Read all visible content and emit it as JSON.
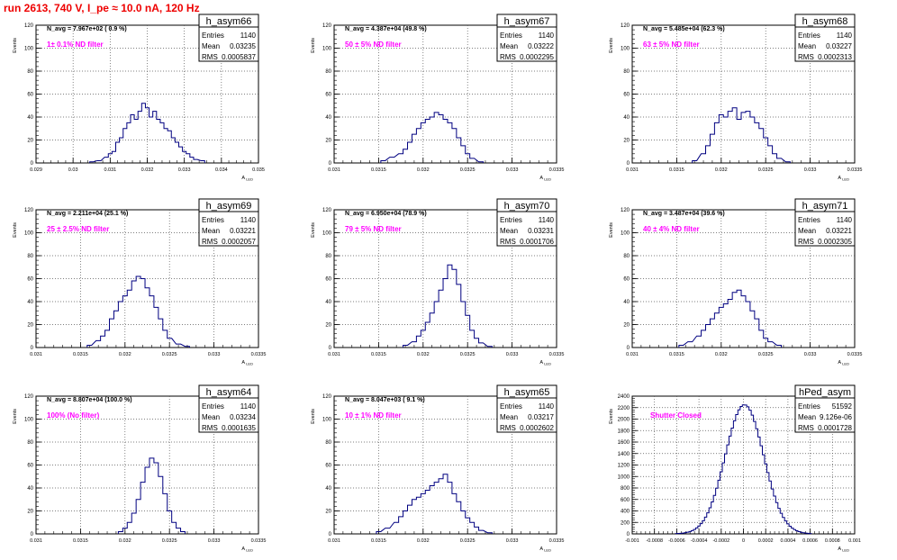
{
  "run_title": "run 2613,   740 V, I_pe ≈ 10.0 nA, 120 Hz",
  "stats_labels": {
    "entries": "Entries",
    "mean": "Mean",
    "rms": "RMS"
  },
  "colors": {
    "hist": "#000080",
    "title": "#e00000",
    "filter": "#ff00ff",
    "grid": "#555555"
  },
  "chart_data": [
    {
      "type": "bar",
      "name": "h_asym66",
      "navg": "N_avg = 7.967e+02 ( 0.9 %)",
      "filter": "1± 0.1% ND filter",
      "entries": "1140",
      "mean": "0.03235",
      "rms": "0.0005837",
      "xlim": [
        0.029,
        0.035
      ],
      "xticks": [
        "0.029",
        "0.03",
        "0.031",
        "0.032",
        "0.033",
        "0.034",
        "0.035"
      ],
      "ylim": [
        0,
        120
      ],
      "yticks": [
        "0",
        "20",
        "40",
        "60",
        "80",
        "100",
        "120"
      ],
      "ylabel": "Events",
      "xlabel": "A_LED",
      "bins": [
        [
          0.0305,
          1
        ],
        [
          0.0307,
          2
        ],
        [
          0.0309,
          5
        ],
        [
          0.031,
          8
        ],
        [
          0.0311,
          10
        ],
        [
          0.0312,
          18
        ],
        [
          0.0313,
          22
        ],
        [
          0.0314,
          30
        ],
        [
          0.0315,
          35
        ],
        [
          0.0316,
          42
        ],
        [
          0.0317,
          38
        ],
        [
          0.0318,
          45
        ],
        [
          0.0319,
          52
        ],
        [
          0.032,
          48
        ],
        [
          0.0321,
          40
        ],
        [
          0.0322,
          45
        ],
        [
          0.0323,
          38
        ],
        [
          0.0324,
          35
        ],
        [
          0.0325,
          30
        ],
        [
          0.0326,
          28
        ],
        [
          0.0327,
          22
        ],
        [
          0.0328,
          18
        ],
        [
          0.0329,
          14
        ],
        [
          0.033,
          10
        ],
        [
          0.0331,
          8
        ],
        [
          0.0332,
          5
        ],
        [
          0.0333,
          3
        ],
        [
          0.0335,
          2
        ]
      ]
    },
    {
      "type": "bar",
      "name": "h_asym67",
      "navg": "N_avg = 4.387e+04 (49.8 %)",
      "filter": "50 ± 5% ND filter",
      "entries": "1140",
      "mean": "0.03222",
      "rms": "0.0002295",
      "xlim": [
        0.031,
        0.0335
      ],
      "xticks": [
        "0.031",
        "0.0315",
        "0.032",
        "0.0325",
        "0.033",
        "0.0335"
      ],
      "ylim": [
        0,
        120
      ],
      "yticks": [
        "0",
        "20",
        "40",
        "60",
        "80",
        "100",
        "120"
      ],
      "ylabel": "Events",
      "xlabel": "A_LED",
      "bins": [
        [
          0.03155,
          2
        ],
        [
          0.03165,
          5
        ],
        [
          0.03175,
          8
        ],
        [
          0.0318,
          12
        ],
        [
          0.03185,
          18
        ],
        [
          0.0319,
          25
        ],
        [
          0.03195,
          30
        ],
        [
          0.032,
          35
        ],
        [
          0.03205,
          38
        ],
        [
          0.0321,
          40
        ],
        [
          0.03215,
          44
        ],
        [
          0.0322,
          42
        ],
        [
          0.03225,
          38
        ],
        [
          0.0323,
          35
        ],
        [
          0.03235,
          30
        ],
        [
          0.0324,
          22
        ],
        [
          0.03245,
          15
        ],
        [
          0.0325,
          8
        ],
        [
          0.03255,
          4
        ],
        [
          0.03265,
          1
        ]
      ]
    },
    {
      "type": "bar",
      "name": "h_asym68",
      "navg": "N_avg = 5.485e+04 (62.3 %)",
      "filter": "63 ± 5% ND filter",
      "entries": "1140",
      "mean": "0.03227",
      "rms": "0.0002313",
      "xlim": [
        0.031,
        0.0335
      ],
      "xticks": [
        "0.031",
        "0.0315",
        "0.032",
        "0.0325",
        "0.033",
        "0.0335"
      ],
      "ylim": [
        0,
        120
      ],
      "yticks": [
        "0",
        "20",
        "40",
        "60",
        "80",
        "100",
        "120"
      ],
      "ylabel": "Events",
      "xlabel": "A_LED",
      "bins": [
        [
          0.0317,
          2
        ],
        [
          0.0318,
          8
        ],
        [
          0.03185,
          15
        ],
        [
          0.0319,
          25
        ],
        [
          0.03195,
          35
        ],
        [
          0.032,
          42
        ],
        [
          0.03205,
          40
        ],
        [
          0.0321,
          45
        ],
        [
          0.03215,
          48
        ],
        [
          0.0322,
          38
        ],
        [
          0.03225,
          44
        ],
        [
          0.0323,
          45
        ],
        [
          0.03235,
          40
        ],
        [
          0.0324,
          35
        ],
        [
          0.03245,
          30
        ],
        [
          0.0325,
          22
        ],
        [
          0.03255,
          15
        ],
        [
          0.0326,
          8
        ],
        [
          0.03265,
          4
        ],
        [
          0.03275,
          1
        ]
      ]
    },
    {
      "type": "bar",
      "name": "h_asym69",
      "navg": "N_avg = 2.211e+04 (25.1 %)",
      "filter": "25 ± 2.5% ND filter",
      "entries": "1140",
      "mean": "0.03221",
      "rms": "0.0002057",
      "xlim": [
        0.031,
        0.0335
      ],
      "xticks": [
        "0.031",
        "0.0315",
        "0.032",
        "0.0325",
        "0.033",
        "0.0335"
      ],
      "ylim": [
        0,
        120
      ],
      "yticks": [
        "0",
        "20",
        "40",
        "60",
        "80",
        "100",
        "120"
      ],
      "ylabel": "Events",
      "xlabel": "A_LED",
      "bins": [
        [
          0.0316,
          2
        ],
        [
          0.0317,
          6
        ],
        [
          0.03175,
          10
        ],
        [
          0.0318,
          15
        ],
        [
          0.03185,
          25
        ],
        [
          0.0319,
          32
        ],
        [
          0.03195,
          40
        ],
        [
          0.032,
          45
        ],
        [
          0.03205,
          50
        ],
        [
          0.0321,
          58
        ],
        [
          0.03215,
          62
        ],
        [
          0.0322,
          60
        ],
        [
          0.03225,
          52
        ],
        [
          0.0323,
          45
        ],
        [
          0.03235,
          35
        ],
        [
          0.0324,
          25
        ],
        [
          0.03245,
          15
        ],
        [
          0.0325,
          8
        ],
        [
          0.0326,
          3
        ],
        [
          0.0327,
          1
        ]
      ]
    },
    {
      "type": "bar",
      "name": "h_asym70",
      "navg": "N_avg = 6.950e+04 (78.9 %)",
      "filter": "79 ± 5% ND filter",
      "entries": "1140",
      "mean": "0.03231",
      "rms": "0.0001706",
      "xlim": [
        0.031,
        0.0335
      ],
      "xticks": [
        "0.031",
        "0.0315",
        "0.032",
        "0.0325",
        "0.033",
        "0.0335"
      ],
      "ylim": [
        0,
        120
      ],
      "yticks": [
        "0",
        "20",
        "40",
        "60",
        "80",
        "100",
        "120"
      ],
      "ylabel": "Events",
      "xlabel": "A_LED",
      "bins": [
        [
          0.0318,
          2
        ],
        [
          0.0319,
          5
        ],
        [
          0.03195,
          10
        ],
        [
          0.032,
          15
        ],
        [
          0.03205,
          22
        ],
        [
          0.0321,
          30
        ],
        [
          0.03215,
          40
        ],
        [
          0.0322,
          50
        ],
        [
          0.03225,
          60
        ],
        [
          0.0323,
          72
        ],
        [
          0.03235,
          68
        ],
        [
          0.0324,
          55
        ],
        [
          0.03245,
          40
        ],
        [
          0.0325,
          28
        ],
        [
          0.03255,
          15
        ],
        [
          0.0326,
          8
        ],
        [
          0.03265,
          4
        ],
        [
          0.03275,
          1
        ]
      ]
    },
    {
      "type": "bar",
      "name": "h_asym71",
      "navg": "N_avg = 3.487e+04 (39.6 %)",
      "filter": "40 ± 4% ND filter",
      "entries": "1140",
      "mean": "0.03221",
      "rms": "0.0002305",
      "xlim": [
        0.031,
        0.0335
      ],
      "xticks": [
        "0.031",
        "0.0315",
        "0.032",
        "0.0325",
        "0.033",
        "0.0335"
      ],
      "ylim": [
        0,
        120
      ],
      "yticks": [
        "0",
        "20",
        "40",
        "60",
        "80",
        "100",
        "120"
      ],
      "ylabel": "Events",
      "xlabel": "A_LED",
      "bins": [
        [
          0.03155,
          2
        ],
        [
          0.03165,
          5
        ],
        [
          0.03175,
          10
        ],
        [
          0.0318,
          15
        ],
        [
          0.03185,
          20
        ],
        [
          0.0319,
          25
        ],
        [
          0.03195,
          30
        ],
        [
          0.032,
          35
        ],
        [
          0.03205,
          38
        ],
        [
          0.0321,
          42
        ],
        [
          0.03215,
          48
        ],
        [
          0.0322,
          50
        ],
        [
          0.03225,
          45
        ],
        [
          0.0323,
          40
        ],
        [
          0.03235,
          32
        ],
        [
          0.0324,
          25
        ],
        [
          0.03245,
          15
        ],
        [
          0.0325,
          8
        ],
        [
          0.03255,
          5
        ],
        [
          0.03265,
          2
        ]
      ]
    },
    {
      "type": "bar",
      "name": "h_asym64",
      "navg": "N_avg = 8.807e+04 (100.0 %)",
      "filter": "100% (No filter)",
      "entries": "1140",
      "mean": "0.03234",
      "rms": "0.0001635",
      "xlim": [
        0.031,
        0.0335
      ],
      "xticks": [
        "0.031",
        "0.0315",
        "0.032",
        "0.0325",
        "0.033",
        "0.0335"
      ],
      "ylim": [
        0,
        120
      ],
      "yticks": [
        "0",
        "20",
        "40",
        "60",
        "80",
        "100",
        "120"
      ],
      "ylabel": "Events",
      "xlabel": "A_LED",
      "bins": [
        [
          0.03195,
          2
        ],
        [
          0.032,
          5
        ],
        [
          0.03205,
          10
        ],
        [
          0.0321,
          18
        ],
        [
          0.03215,
          30
        ],
        [
          0.0322,
          45
        ],
        [
          0.03225,
          58
        ],
        [
          0.0323,
          66
        ],
        [
          0.03235,
          62
        ],
        [
          0.0324,
          50
        ],
        [
          0.03245,
          35
        ],
        [
          0.0325,
          20
        ],
        [
          0.03255,
          10
        ],
        [
          0.0326,
          5
        ],
        [
          0.03265,
          2
        ]
      ]
    },
    {
      "type": "bar",
      "name": "h_asym65",
      "navg": "N_avg = 8.047e+03 ( 9.1 %)",
      "filter": "10 ± 1% ND filter",
      "entries": "1140",
      "mean": "0.03217",
      "rms": "0.0002602",
      "xlim": [
        0.031,
        0.0335
      ],
      "xticks": [
        "0.031",
        "0.0315",
        "0.032",
        "0.0325",
        "0.033",
        "0.0335"
      ],
      "ylim": [
        0,
        120
      ],
      "yticks": [
        "0",
        "20",
        "40",
        "60",
        "80",
        "100",
        "120"
      ],
      "ylabel": "Events",
      "xlabel": "A_LED",
      "bins": [
        [
          0.0315,
          2
        ],
        [
          0.0316,
          5
        ],
        [
          0.0317,
          10
        ],
        [
          0.03175,
          15
        ],
        [
          0.0318,
          20
        ],
        [
          0.03185,
          25
        ],
        [
          0.0319,
          30
        ],
        [
          0.03195,
          32
        ],
        [
          0.032,
          35
        ],
        [
          0.03205,
          38
        ],
        [
          0.0321,
          42
        ],
        [
          0.03215,
          45
        ],
        [
          0.0322,
          48
        ],
        [
          0.03225,
          52
        ],
        [
          0.0323,
          45
        ],
        [
          0.03235,
          35
        ],
        [
          0.0324,
          28
        ],
        [
          0.03245,
          20
        ],
        [
          0.0325,
          14
        ],
        [
          0.03255,
          10
        ],
        [
          0.0326,
          6
        ],
        [
          0.03265,
          3
        ],
        [
          0.03275,
          1
        ]
      ]
    },
    {
      "type": "bar",
      "name": "hPed_asym",
      "navg": "",
      "filter": "Shutter Closed",
      "entries": "51592",
      "mean": "9.126e-06",
      "rms": "0.0001728",
      "xlim": [
        -0.001,
        0.001
      ],
      "xticks": [
        "-0.001",
        "-0.0008",
        "-0.0006",
        "-0.0004",
        "-0.0002",
        "0",
        "0.0002",
        "0.0004",
        "0.0006",
        "0.0008",
        "0.001"
      ],
      "ylim": [
        0,
        2400
      ],
      "yticks": [
        "0",
        "200",
        "400",
        "600",
        "800",
        "1000",
        "1200",
        "1400",
        "1600",
        "1800",
        "2000",
        "2200",
        "2400"
      ],
      "ylabel": "Events",
      "xlabel": "A_LED",
      "gauss": {
        "mu": 9e-06,
        "sigma": 0.0001728,
        "peak": 2250,
        "bin": 2e-05
      }
    }
  ]
}
